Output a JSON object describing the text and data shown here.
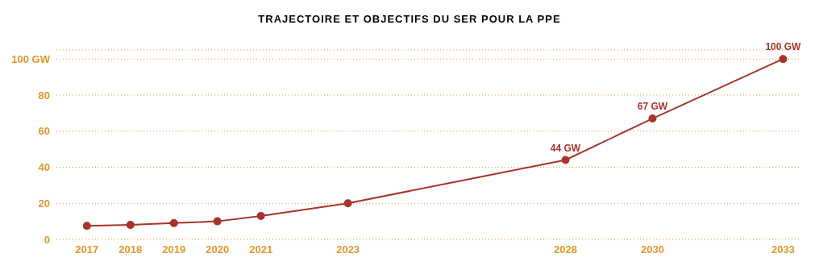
{
  "chart_data": {
    "type": "line",
    "title": "TRAJECTOIRE ET OBJECTIFS DU SER POUR LA PPE",
    "x": [
      2017,
      2018,
      2019,
      2020,
      2021,
      2023,
      2028,
      2030,
      2033
    ],
    "values": [
      7.5,
      8,
      9,
      10,
      13,
      20,
      44,
      67,
      100
    ],
    "value_labels": [
      null,
      null,
      null,
      null,
      null,
      null,
      "44 GW",
      "67 GW",
      "100 GW"
    ],
    "color": "#a9332a",
    "xlim": [
      2016.3,
      2033.4
    ],
    "xticks": [
      2017,
      2018,
      2019,
      2020,
      2021,
      2023,
      2028,
      2030,
      2033
    ],
    "ylim": [
      0,
      105
    ],
    "yticks": [
      0,
      20,
      40,
      60,
      80,
      {
        "value": 100,
        "label": "100 GW"
      }
    ],
    "grid": "y",
    "marker": "circle",
    "line_style": "solid",
    "legend": false
  }
}
